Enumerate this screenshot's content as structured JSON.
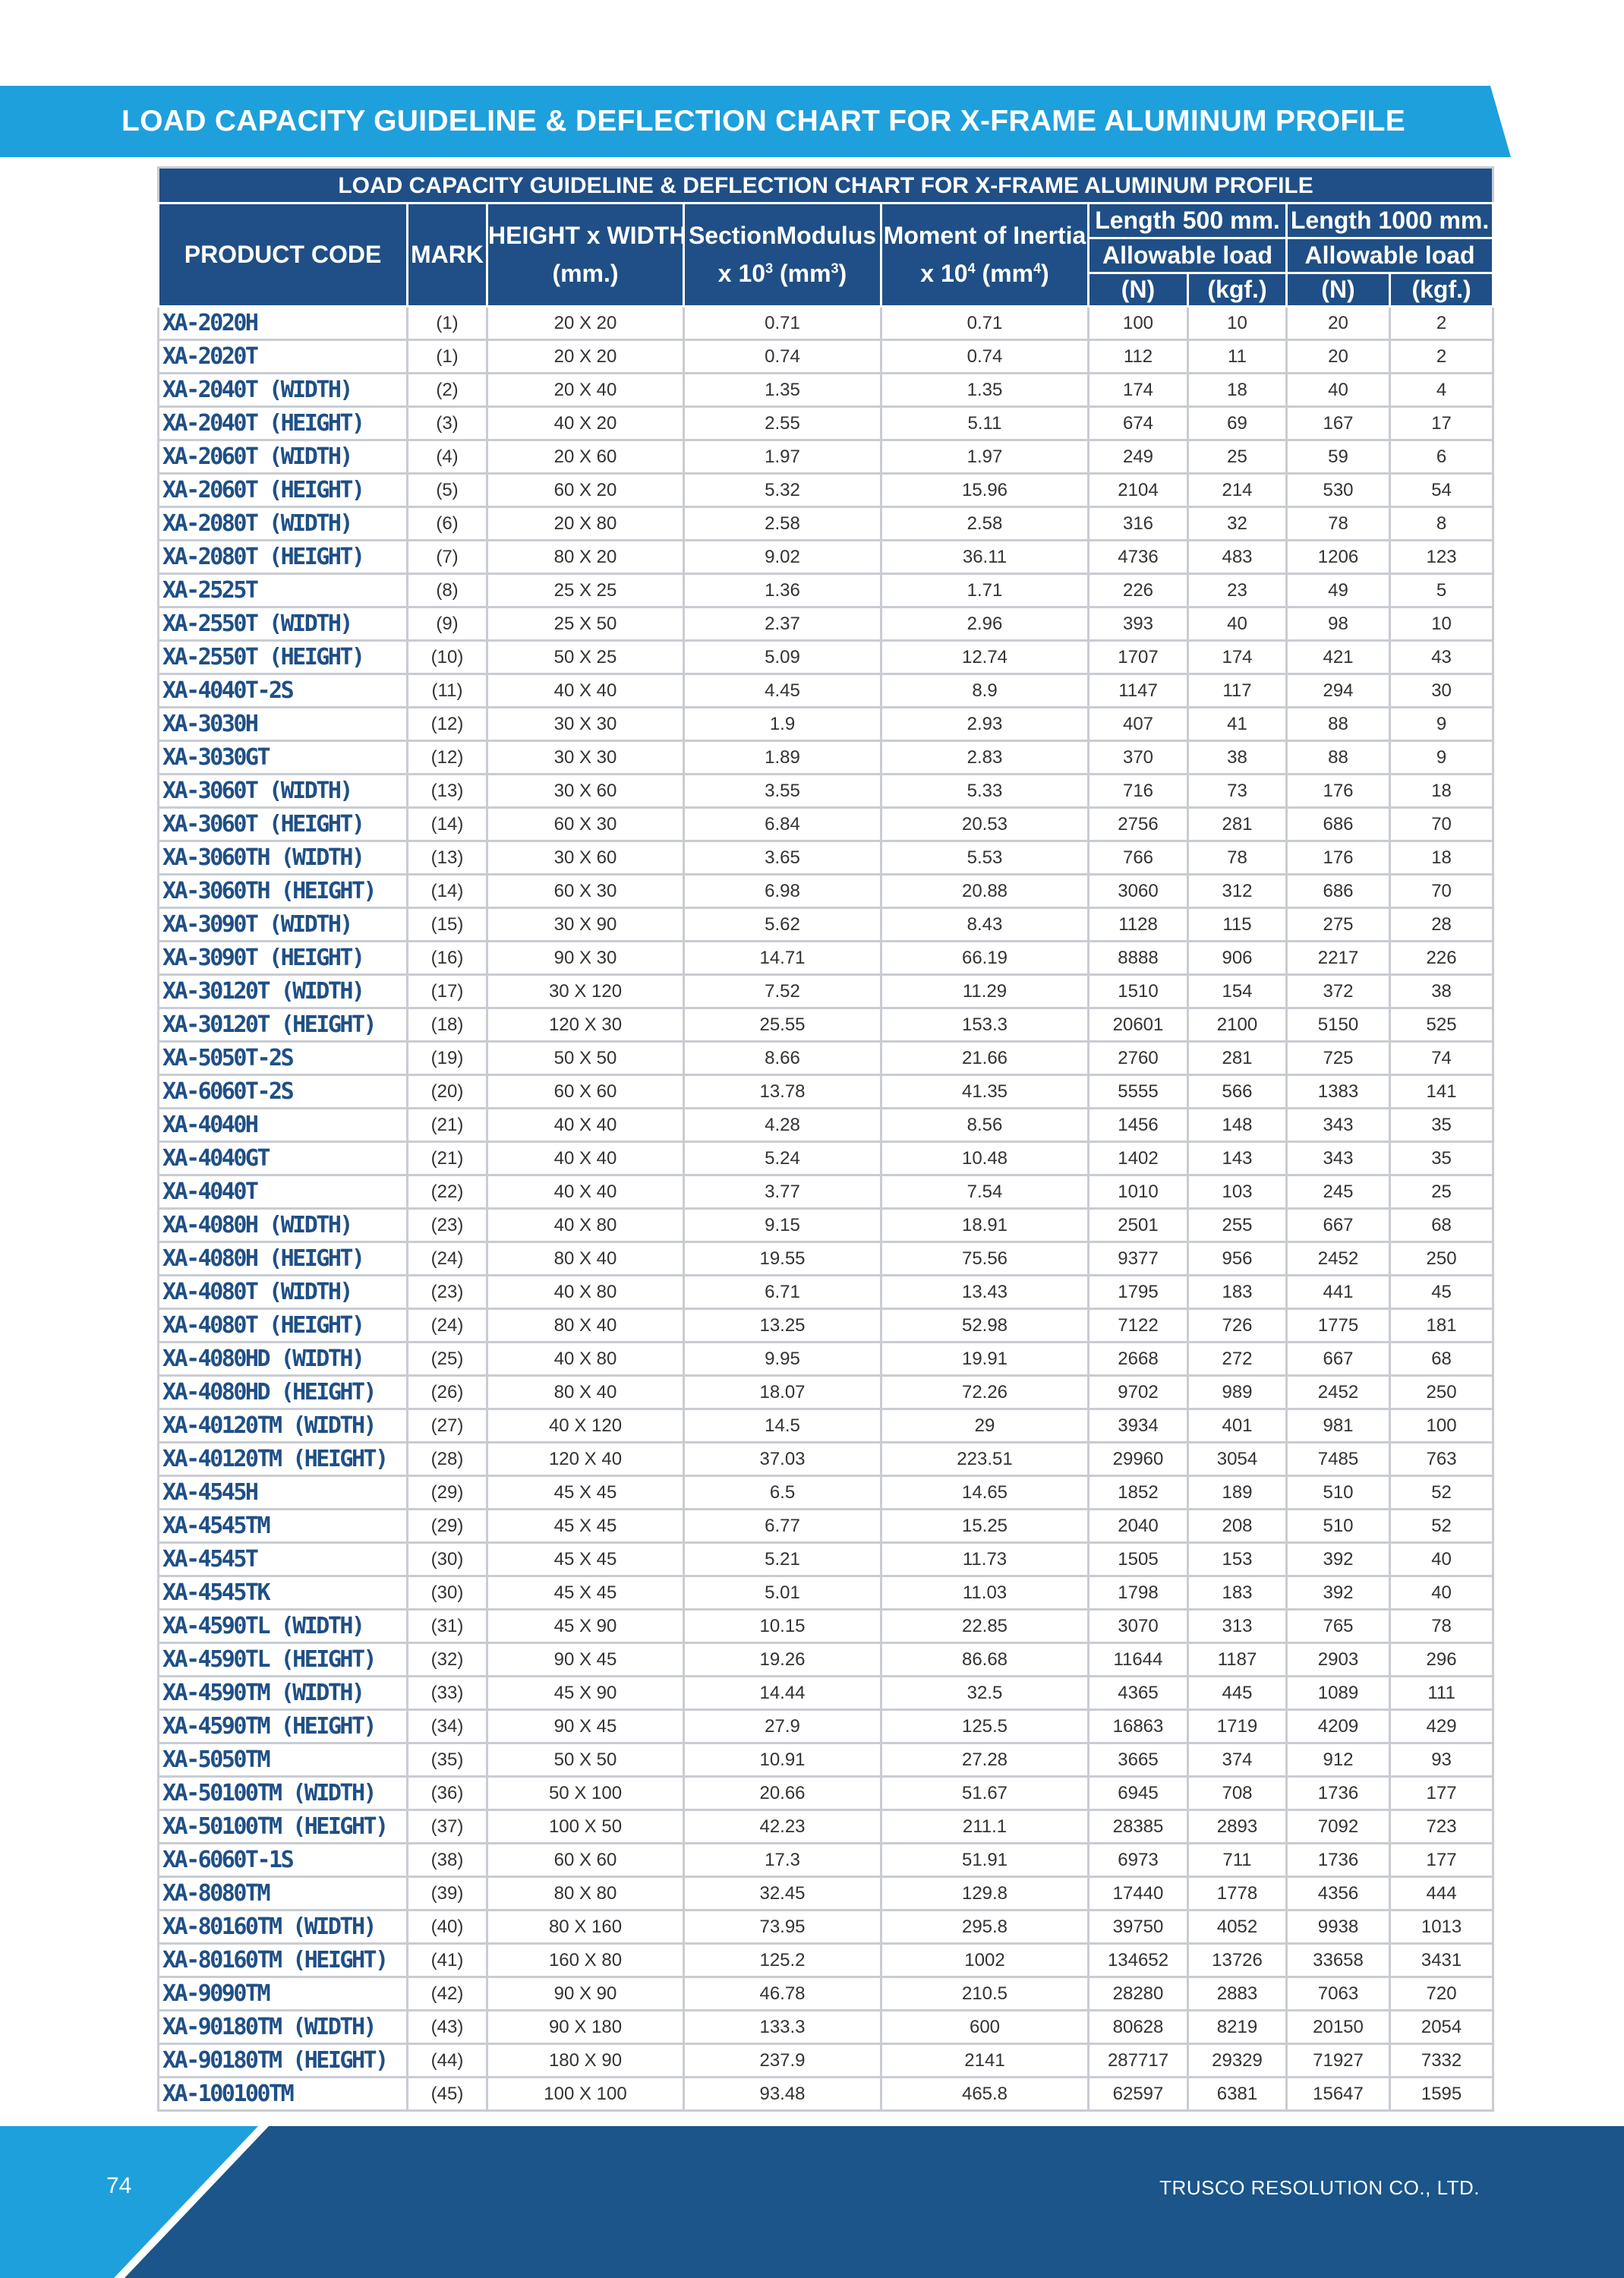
{
  "banner": {
    "title": "LOAD CAPACITY GUIDELINE & DEFLECTION CHART FOR X-FRAME ALUMINUM PROFILE"
  },
  "table": {
    "caption": "LOAD CAPACITY GUIDELINE & DEFLECTION CHART FOR X-FRAME ALUMINUM PROFILE",
    "headers": {
      "product_code": "PRODUCT CODE",
      "mark": "MARK",
      "height_width_line1": "HEIGHT x WIDTH",
      "height_width_line2": "(mm.)",
      "section_modulus_line1": "SectionModulus",
      "section_modulus_pre": "x 10",
      "section_modulus_exp": "3",
      "section_modulus_unit_pre": " (mm",
      "section_modulus_unit_exp": "3",
      "section_modulus_unit_post": ")",
      "moment_line1": "Moment of Inertia",
      "moment_pre": "x 10",
      "moment_exp": "4",
      "moment_unit_pre": " (mm",
      "moment_unit_exp": "4",
      "moment_unit_post": ")",
      "length_500": "Length 500 mm.",
      "length_1000": "Length 1000 mm.",
      "allowable_load": "Allowable load",
      "unit_n": "(N)",
      "unit_kgf": "(kgf.)"
    },
    "rows": [
      [
        "XA-2020H",
        "(1)",
        "20 X 20",
        "0.71",
        "0.71",
        "100",
        "10",
        "20",
        "2"
      ],
      [
        "XA-2020T",
        "(1)",
        "20 X 20",
        "0.74",
        "0.74",
        "112",
        "11",
        "20",
        "2"
      ],
      [
        "XA-2040T (WIDTH)",
        "(2)",
        "20 X 40",
        "1.35",
        "1.35",
        "174",
        "18",
        "40",
        "4"
      ],
      [
        "XA-2040T (HEIGHT)",
        "(3)",
        "40 X 20",
        "2.55",
        "5.11",
        "674",
        "69",
        "167",
        "17"
      ],
      [
        "XA-2060T (WIDTH)",
        "(4)",
        "20 X 60",
        "1.97",
        "1.97",
        "249",
        "25",
        "59",
        "6"
      ],
      [
        "XA-2060T (HEIGHT)",
        "(5)",
        "60 X 20",
        "5.32",
        "15.96",
        "2104",
        "214",
        "530",
        "54"
      ],
      [
        "XA-2080T (WIDTH)",
        "(6)",
        "20 X 80",
        "2.58",
        "2.58",
        "316",
        "32",
        "78",
        "8"
      ],
      [
        "XA-2080T (HEIGHT)",
        "(7)",
        "80 X 20",
        "9.02",
        "36.11",
        "4736",
        "483",
        "1206",
        "123"
      ],
      [
        "XA-2525T",
        "(8)",
        "25 X 25",
        "1.36",
        "1.71",
        "226",
        "23",
        "49",
        "5"
      ],
      [
        "XA-2550T (WIDTH)",
        "(9)",
        "25 X 50",
        "2.37",
        "2.96",
        "393",
        "40",
        "98",
        "10"
      ],
      [
        "XA-2550T (HEIGHT)",
        "(10)",
        "50 X 25",
        "5.09",
        "12.74",
        "1707",
        "174",
        "421",
        "43"
      ],
      [
        "XA-4040T-2S",
        "(11)",
        "40 X 40",
        "4.45",
        "8.9",
        "1147",
        "117",
        "294",
        "30"
      ],
      [
        "XA-3030H",
        "(12)",
        "30 X 30",
        "1.9",
        "2.93",
        "407",
        "41",
        "88",
        "9"
      ],
      [
        "XA-3030GT",
        "(12)",
        "30 X 30",
        "1.89",
        "2.83",
        "370",
        "38",
        "88",
        "9"
      ],
      [
        "XA-3060T (WIDTH)",
        "(13)",
        "30 X 60",
        "3.55",
        "5.33",
        "716",
        "73",
        "176",
        "18"
      ],
      [
        "XA-3060T (HEIGHT)",
        "(14)",
        "60 X 30",
        "6.84",
        "20.53",
        "2756",
        "281",
        "686",
        "70"
      ],
      [
        "XA-3060TH (WIDTH)",
        "(13)",
        "30 X 60",
        "3.65",
        "5.53",
        "766",
        "78",
        "176",
        "18"
      ],
      [
        "XA-3060TH (HEIGHT)",
        "(14)",
        "60 X 30",
        "6.98",
        "20.88",
        "3060",
        "312",
        "686",
        "70"
      ],
      [
        "XA-3090T (WIDTH)",
        "(15)",
        "30 X 90",
        "5.62",
        "8.43",
        "1128",
        "115",
        "275",
        "28"
      ],
      [
        "XA-3090T (HEIGHT)",
        "(16)",
        "90 X 30",
        "14.71",
        "66.19",
        "8888",
        "906",
        "2217",
        "226"
      ],
      [
        "XA-30120T (WIDTH)",
        "(17)",
        "30 X 120",
        "7.52",
        "11.29",
        "1510",
        "154",
        "372",
        "38"
      ],
      [
        "XA-30120T (HEIGHT)",
        "(18)",
        "120 X 30",
        "25.55",
        "153.3",
        "20601",
        "2100",
        "5150",
        "525"
      ],
      [
        "XA-5050T-2S",
        "(19)",
        "50 X 50",
        "8.66",
        "21.66",
        "2760",
        "281",
        "725",
        "74"
      ],
      [
        "XA-6060T-2S",
        "(20)",
        "60 X 60",
        "13.78",
        "41.35",
        "5555",
        "566",
        "1383",
        "141"
      ],
      [
        "XA-4040H",
        "(21)",
        "40 X 40",
        "4.28",
        "8.56",
        "1456",
        "148",
        "343",
        "35"
      ],
      [
        "XA-4040GT",
        "(21)",
        "40 X 40",
        "5.24",
        "10.48",
        "1402",
        "143",
        "343",
        "35"
      ],
      [
        "XA-4040T",
        "(22)",
        "40 X 40",
        "3.77",
        "7.54",
        "1010",
        "103",
        "245",
        "25"
      ],
      [
        "XA-4080H (WIDTH)",
        "(23)",
        "40 X 80",
        "9.15",
        "18.91",
        "2501",
        "255",
        "667",
        "68"
      ],
      [
        "XA-4080H (HEIGHT)",
        "(24)",
        "80 X 40",
        "19.55",
        "75.56",
        "9377",
        "956",
        "2452",
        "250"
      ],
      [
        "XA-4080T (WIDTH)",
        "(23)",
        "40 X 80",
        "6.71",
        "13.43",
        "1795",
        "183",
        "441",
        "45"
      ],
      [
        "XA-4080T (HEIGHT)",
        "(24)",
        "80 X 40",
        "13.25",
        "52.98",
        "7122",
        "726",
        "1775",
        "181"
      ],
      [
        "XA-4080HD (WIDTH)",
        "(25)",
        "40 X 80",
        "9.95",
        "19.91",
        "2668",
        "272",
        "667",
        "68"
      ],
      [
        "XA-4080HD (HEIGHT)",
        "(26)",
        "80 X 40",
        "18.07",
        "72.26",
        "9702",
        "989",
        "2452",
        "250"
      ],
      [
        "XA-40120TM (WIDTH)",
        "(27)",
        "40 X 120",
        "14.5",
        "29",
        "3934",
        "401",
        "981",
        "100"
      ],
      [
        "XA-40120TM (HEIGHT)",
        "(28)",
        "120 X 40",
        "37.03",
        "223.51",
        "29960",
        "3054",
        "7485",
        "763"
      ],
      [
        "XA-4545H",
        "(29)",
        "45 X 45",
        "6.5",
        "14.65",
        "1852",
        "189",
        "510",
        "52"
      ],
      [
        "XA-4545TM",
        "(29)",
        "45 X 45",
        "6.77",
        "15.25",
        "2040",
        "208",
        "510",
        "52"
      ],
      [
        "XA-4545T",
        "(30)",
        "45 X 45",
        "5.21",
        "11.73",
        "1505",
        "153",
        "392",
        "40"
      ],
      [
        "XA-4545TK",
        "(30)",
        "45 X 45",
        "5.01",
        "11.03",
        "1798",
        "183",
        "392",
        "40"
      ],
      [
        "XA-4590TL (WIDTH)",
        "(31)",
        "45 X 90",
        "10.15",
        "22.85",
        "3070",
        "313",
        "765",
        "78"
      ],
      [
        "XA-4590TL (HEIGHT)",
        "(32)",
        "90 X 45",
        "19.26",
        "86.68",
        "11644",
        "1187",
        "2903",
        "296"
      ],
      [
        "XA-4590TM (WIDTH)",
        "(33)",
        "45 X 90",
        "14.44",
        "32.5",
        "4365",
        "445",
        "1089",
        "111"
      ],
      [
        "XA-4590TM (HEIGHT)",
        "(34)",
        "90 X 45",
        "27.9",
        "125.5",
        "16863",
        "1719",
        "4209",
        "429"
      ],
      [
        "XA-5050TM",
        "(35)",
        "50 X 50",
        "10.91",
        "27.28",
        "3665",
        "374",
        "912",
        "93"
      ],
      [
        "XA-50100TM (WIDTH)",
        "(36)",
        "50 X 100",
        "20.66",
        "51.67",
        "6945",
        "708",
        "1736",
        "177"
      ],
      [
        "XA-50100TM (HEIGHT)",
        "(37)",
        "100 X 50",
        "42.23",
        "211.1",
        "28385",
        "2893",
        "7092",
        "723"
      ],
      [
        "XA-6060T-1S",
        "(38)",
        "60 X 60",
        "17.3",
        "51.91",
        "6973",
        "711",
        "1736",
        "177"
      ],
      [
        "XA-8080TM",
        "(39)",
        "80 X 80",
        "32.45",
        "129.8",
        "17440",
        "1778",
        "4356",
        "444"
      ],
      [
        "XA-80160TM (WIDTH)",
        "(40)",
        "80 X 160",
        "73.95",
        "295.8",
        "39750",
        "4052",
        "9938",
        "1013"
      ],
      [
        "XA-80160TM (HEIGHT)",
        "(41)",
        "160 X 80",
        "125.2",
        "1002",
        "134652",
        "13726",
        "33658",
        "3431"
      ],
      [
        "XA-9090TM",
        "(42)",
        "90 X 90",
        "46.78",
        "210.5",
        "28280",
        "2883",
        "7063",
        "720"
      ],
      [
        "XA-90180TM (WIDTH)",
        "(43)",
        "90 X 180",
        "133.3",
        "600",
        "80628",
        "8219",
        "20150",
        "2054"
      ],
      [
        "XA-90180TM (HEIGHT)",
        "(44)",
        "180 X 90",
        "237.9",
        "2141",
        "287717",
        "29329",
        "71927",
        "7332"
      ],
      [
        "XA-100100TM",
        "(45)",
        "100 X 100",
        "93.48",
        "465.8",
        "62597",
        "6381",
        "15647",
        "1595"
      ]
    ]
  },
  "footer": {
    "page_number": "74",
    "company": "TRUSCO RESOLUTION CO., LTD."
  },
  "colors": {
    "banner": "#1ea0dc",
    "header": "#1f4f86",
    "footer": "#1b5589",
    "code_text": "#1f4f86"
  }
}
